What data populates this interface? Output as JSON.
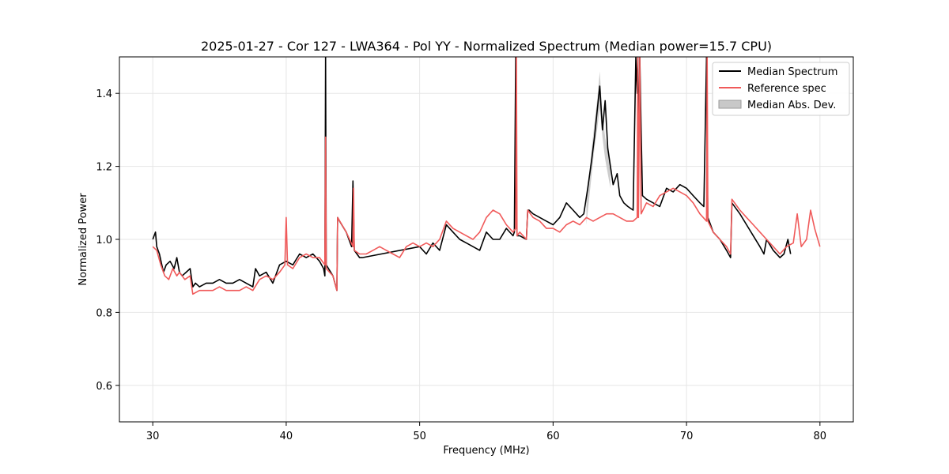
{
  "chart_data": {
    "type": "line",
    "title": "2025-01-27 - Cor 127 - LWA364 - Pol YY - Normalized Spectrum (Median power=15.7 CPU)",
    "xlabel": "Frequency (MHz)",
    "ylabel": "Normalized Power",
    "xlim": [
      27.5,
      82.5
    ],
    "ylim": [
      0.5,
      1.5
    ],
    "xticks": [
      30,
      40,
      50,
      60,
      70,
      80
    ],
    "yticks": [
      0.6,
      0.8,
      1.0,
      1.2,
      1.4
    ],
    "xtick_labels": [
      "30",
      "40",
      "50",
      "60",
      "70",
      "80"
    ],
    "ytick_labels": [
      "0.6",
      "0.8",
      "1.0",
      "1.2",
      "1.4"
    ],
    "grid": true,
    "legend_position": "top-right",
    "colors": {
      "median": "#000000",
      "reference": "#f05a5a",
      "mad": "#c8c8c8",
      "overlap": "#8b0000"
    },
    "series": [
      {
        "name": "Median Spectrum",
        "x": [
          30.0,
          30.1,
          30.2,
          30.3,
          30.4,
          30.5,
          30.8,
          31.0,
          31.3,
          31.6,
          31.8,
          32.0,
          32.2,
          32.5,
          32.8,
          33.0,
          33.2,
          33.5,
          34.0,
          34.5,
          35.0,
          35.5,
          36.0,
          36.5,
          37.0,
          37.5,
          37.7,
          38.0,
          38.5,
          39.0,
          39.5,
          40.0,
          40.5,
          41.0,
          41.5,
          42.0,
          42.5,
          42.8,
          42.9,
          42.95,
          43.0,
          43.5,
          43.8,
          43.85,
          44.0,
          44.5,
          44.9,
          45.0,
          45.1,
          45.5,
          45.7,
          50.0,
          50.5,
          51.0,
          51.5,
          52.0,
          52.5,
          53.0,
          53.5,
          54.0,
          54.5,
          55.0,
          55.5,
          56.0,
          56.5,
          57.0,
          57.1,
          57.2,
          57.25,
          57.3,
          57.5,
          58.0,
          58.1,
          58.2,
          58.5,
          59.0,
          59.5,
          60.0,
          60.5,
          61.0,
          61.5,
          62.0,
          62.3,
          62.6,
          62.9,
          63.1,
          63.3,
          63.5,
          63.7,
          63.9,
          64.1,
          64.3,
          64.5,
          64.8,
          65.0,
          65.3,
          65.6,
          66.0,
          66.2,
          66.3,
          66.35,
          66.4,
          66.5,
          66.6,
          66.7,
          67.0,
          67.5,
          68.0,
          68.5,
          69.0,
          69.5,
          70.0,
          70.5,
          71.0,
          71.3,
          71.5,
          71.55,
          71.6,
          71.8,
          72.0,
          72.5,
          73.0,
          73.3,
          73.4,
          74.0,
          74.5,
          75.0,
          75.5,
          75.8,
          76.0,
          76.5,
          77.0,
          77.3,
          77.6,
          77.8
        ],
        "y": [
          1.0,
          1.01,
          1.02,
          0.98,
          0.97,
          0.96,
          0.91,
          0.93,
          0.94,
          0.92,
          0.95,
          0.91,
          0.9,
          0.91,
          0.92,
          0.87,
          0.88,
          0.87,
          0.88,
          0.88,
          0.89,
          0.88,
          0.88,
          0.89,
          0.88,
          0.87,
          0.92,
          0.9,
          0.91,
          0.88,
          0.93,
          0.94,
          0.93,
          0.96,
          0.95,
          0.96,
          0.94,
          0.92,
          0.9,
          1.5,
          0.93,
          0.9,
          0.86,
          1.06,
          1.05,
          1.02,
          0.98,
          1.16,
          0.97,
          0.95,
          0.95,
          0.98,
          0.96,
          0.99,
          0.97,
          1.04,
          1.02,
          1.0,
          0.99,
          0.98,
          0.97,
          1.02,
          1.0,
          1.0,
          1.03,
          1.01,
          1.02,
          1.5,
          1.1,
          1.01,
          1.01,
          1.0,
          1.08,
          1.08,
          1.07,
          1.06,
          1.05,
          1.04,
          1.06,
          1.1,
          1.08,
          1.06,
          1.07,
          1.14,
          1.22,
          1.28,
          1.35,
          1.42,
          1.3,
          1.38,
          1.25,
          1.2,
          1.15,
          1.18,
          1.12,
          1.1,
          1.09,
          1.08,
          1.5,
          1.4,
          1.5,
          1.25,
          1.5,
          1.3,
          1.12,
          1.11,
          1.1,
          1.09,
          1.14,
          1.13,
          1.15,
          1.14,
          1.12,
          1.1,
          1.09,
          1.5,
          1.2,
          1.06,
          1.04,
          1.02,
          1.0,
          0.97,
          0.95,
          1.1,
          1.07,
          1.04,
          1.01,
          0.98,
          0.96,
          1.0,
          0.97,
          0.95,
          0.96,
          1.0,
          0.96
        ]
      },
      {
        "name": "Reference spec",
        "x": [
          30.0,
          30.3,
          30.6,
          30.9,
          31.2,
          31.5,
          31.8,
          32.0,
          32.4,
          32.8,
          33.0,
          33.5,
          34.0,
          34.5,
          35.0,
          35.5,
          36.0,
          36.5,
          37.0,
          37.5,
          38.0,
          38.5,
          39.0,
          39.5,
          39.9,
          40.0,
          40.1,
          40.5,
          41.0,
          41.5,
          42.0,
          42.5,
          42.9,
          42.95,
          43.0,
          43.5,
          43.8,
          43.85,
          44.5,
          45.0,
          45.05,
          45.1,
          45.5,
          46.0,
          46.5,
          47.0,
          47.5,
          48.0,
          48.5,
          49.0,
          49.5,
          50.0,
          50.5,
          51.0,
          51.5,
          52.0,
          52.5,
          53.0,
          53.5,
          54.0,
          54.5,
          55.0,
          55.5,
          56.0,
          56.5,
          57.0,
          57.2,
          57.25,
          57.3,
          57.5,
          58.0,
          58.1,
          58.5,
          59.0,
          59.5,
          60.0,
          60.5,
          61.0,
          61.5,
          62.0,
          62.5,
          63.0,
          63.5,
          64.0,
          64.5,
          65.0,
          65.5,
          66.0,
          66.3,
          66.35,
          66.4,
          66.5,
          66.6,
          67.0,
          67.5,
          68.0,
          68.5,
          69.0,
          69.5,
          70.0,
          70.5,
          71.0,
          71.5,
          71.55,
          71.6,
          72.0,
          72.5,
          73.0,
          73.3,
          73.4,
          74.0,
          74.5,
          75.0,
          75.5,
          76.0,
          76.5,
          77.0,
          77.5,
          78.0,
          78.3,
          78.6,
          79.0,
          79.3,
          79.6,
          80.0
        ],
        "y": [
          0.98,
          0.97,
          0.93,
          0.9,
          0.89,
          0.92,
          0.9,
          0.91,
          0.89,
          0.9,
          0.85,
          0.86,
          0.86,
          0.86,
          0.87,
          0.86,
          0.86,
          0.86,
          0.87,
          0.86,
          0.89,
          0.9,
          0.89,
          0.91,
          0.93,
          1.06,
          0.93,
          0.92,
          0.95,
          0.96,
          0.95,
          0.95,
          0.93,
          1.28,
          0.92,
          0.9,
          0.86,
          1.06,
          1.02,
          0.98,
          1.14,
          0.97,
          0.96,
          0.96,
          0.97,
          0.98,
          0.97,
          0.96,
          0.95,
          0.98,
          0.99,
          0.98,
          0.99,
          0.98,
          1.0,
          1.05,
          1.03,
          1.02,
          1.01,
          1.0,
          1.02,
          1.06,
          1.08,
          1.07,
          1.04,
          1.02,
          1.03,
          1.5,
          1.01,
          1.02,
          1.0,
          1.08,
          1.06,
          1.05,
          1.03,
          1.03,
          1.02,
          1.04,
          1.05,
          1.04,
          1.06,
          1.05,
          1.06,
          1.07,
          1.07,
          1.06,
          1.05,
          1.05,
          1.06,
          1.5,
          1.06,
          1.5,
          1.07,
          1.1,
          1.09,
          1.12,
          1.13,
          1.14,
          1.13,
          1.12,
          1.1,
          1.07,
          1.05,
          1.5,
          1.05,
          1.02,
          1.0,
          0.98,
          0.96,
          1.11,
          1.08,
          1.06,
          1.04,
          1.02,
          1.0,
          0.98,
          0.96,
          0.98,
          0.99,
          1.07,
          0.98,
          1.0,
          1.08,
          1.03,
          0.98
        ]
      }
    ],
    "band": {
      "name": "Median Abs. Dev.",
      "x": [
        62.5,
        62.9,
        63.1,
        63.3,
        63.5,
        63.7,
        63.9,
        64.1,
        64.3
      ],
      "lower": [
        1.04,
        1.18,
        1.25,
        1.3,
        1.36,
        1.28,
        1.22,
        1.18,
        1.14
      ],
      "upper": [
        1.1,
        1.25,
        1.32,
        1.38,
        1.46,
        1.34,
        1.28,
        1.24,
        1.2
      ]
    }
  }
}
